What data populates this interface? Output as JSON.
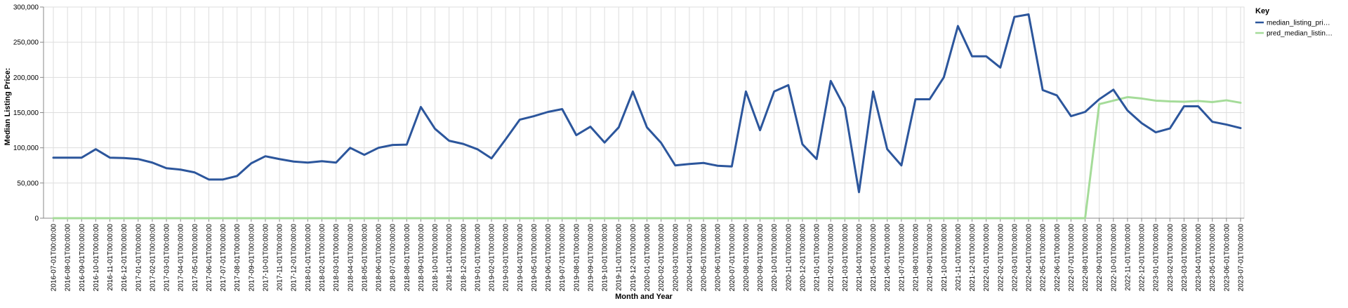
{
  "chart_data": {
    "type": "line",
    "xlabel": "Month and Year",
    "ylabel": "Median Listing Price:",
    "ylim": [
      0,
      300000
    ],
    "y_ticks": [
      0,
      50000,
      100000,
      150000,
      200000,
      250000,
      300000
    ],
    "y_tick_labels": [
      "0",
      "50,000",
      "100,000",
      "150,000",
      "200,000",
      "250,000",
      "300,000"
    ],
    "grid": true,
    "legend": {
      "title": "Key",
      "placement": "top-right",
      "entries": [
        {
          "label": "median_listing_pri…",
          "color": "#2c569c"
        },
        {
          "label": "pred_median_listin…",
          "color": "#a5dc99"
        }
      ]
    },
    "categories": [
      "2016-07-01T00:00:00",
      "2016-08-01T00:00:00",
      "2016-09-01T00:00:00",
      "2016-10-01T00:00:00",
      "2016-11-01T00:00:00",
      "2016-12-01T00:00:00",
      "2017-01-01T00:00:00",
      "2017-02-01T00:00:00",
      "2017-03-01T00:00:00",
      "2017-04-01T00:00:00",
      "2017-05-01T00:00:00",
      "2017-06-01T00:00:00",
      "2017-07-01T00:00:00",
      "2017-08-01T00:00:00",
      "2017-09-01T00:00:00",
      "2017-10-01T00:00:00",
      "2017-11-01T00:00:00",
      "2017-12-01T00:00:00",
      "2018-01-01T00:00:00",
      "2018-02-01T00:00:00",
      "2018-03-01T00:00:00",
      "2018-04-01T00:00:00",
      "2018-05-01T00:00:00",
      "2018-06-01T00:00:00",
      "2018-07-01T00:00:00",
      "2018-08-01T00:00:00",
      "2018-09-01T00:00:00",
      "2018-10-01T00:00:00",
      "2018-11-01T00:00:00",
      "2018-12-01T00:00:00",
      "2019-01-01T00:00:00",
      "2019-02-01T00:00:00",
      "2019-03-01T00:00:00",
      "2019-04-01T00:00:00",
      "2019-05-01T00:00:00",
      "2019-06-01T00:00:00",
      "2019-07-01T00:00:00",
      "2019-08-01T00:00:00",
      "2019-09-01T00:00:00",
      "2019-10-01T00:00:00",
      "2019-11-01T00:00:00",
      "2019-12-01T00:00:00",
      "2020-01-01T00:00:00",
      "2020-02-01T00:00:00",
      "2020-03-01T00:00:00",
      "2020-04-01T00:00:00",
      "2020-05-01T00:00:00",
      "2020-06-01T00:00:00",
      "2020-07-01T00:00:00",
      "2020-08-01T00:00:00",
      "2020-09-01T00:00:00",
      "2020-10-01T00:00:00",
      "2020-11-01T00:00:00",
      "2020-12-01T00:00:00",
      "2021-01-01T00:00:00",
      "2021-02-01T00:00:00",
      "2021-03-01T00:00:00",
      "2021-04-01T00:00:00",
      "2021-05-01T00:00:00",
      "2021-06-01T00:00:00",
      "2021-07-01T00:00:00",
      "2021-08-01T00:00:00",
      "2021-09-01T00:00:00",
      "2021-10-01T00:00:00",
      "2021-11-01T00:00:00",
      "2021-12-01T00:00:00",
      "2022-01-01T00:00:00",
      "2022-02-01T00:00:00",
      "2022-03-01T00:00:00",
      "2022-04-01T00:00:00",
      "2022-05-01T00:00:00",
      "2022-06-01T00:00:00",
      "2022-07-01T00:00:00",
      "2022-08-01T00:00:00",
      "2022-09-01T00:00:00",
      "2022-10-01T00:00:00",
      "2022-11-01T00:00:00",
      "2022-12-01T00:00:00",
      "2023-01-01T00:00:00",
      "2023-02-01T00:00:00",
      "2023-03-01T00:00:00",
      "2023-04-01T00:00:00",
      "2023-05-01T00:00:00",
      "2023-06-01T00:00:00",
      "2023-07-01T00:00:00"
    ],
    "series": [
      {
        "name": "median_listing_pri…",
        "color": "#2c569c",
        "values": [
          86000,
          86000,
          86000,
          98000,
          86000,
          85500,
          84000,
          79000,
          71000,
          69000,
          65000,
          55000,
          55000,
          60000,
          78000,
          88000,
          84000,
          80500,
          79000,
          81000,
          79000,
          100000,
          90000,
          100000,
          104000,
          104500,
          158000,
          127000,
          110000,
          105500,
          98000,
          85000,
          112000,
          140000,
          145000,
          151000,
          155000,
          118000,
          130000,
          107500,
          129000,
          180000,
          129000,
          107000,
          75000,
          77000,
          78500,
          74500,
          73500,
          180000,
          125000,
          180000,
          189000,
          105000,
          84000,
          195000,
          157000,
          37000,
          180000,
          98000,
          75000,
          169000,
          169000,
          200000,
          273000,
          230000,
          230000,
          214000,
          286000,
          289500,
          182000,
          174500,
          145000,
          151000,
          169000,
          182500,
          153000,
          135000,
          122000,
          127500,
          159000,
          159000,
          137000,
          133000,
          128000
        ]
      },
      {
        "name": "pred_median_listin…",
        "color": "#a5dc99",
        "values": [
          0,
          0,
          0,
          0,
          0,
          0,
          0,
          0,
          0,
          0,
          0,
          0,
          0,
          0,
          0,
          0,
          0,
          0,
          0,
          0,
          0,
          0,
          0,
          0,
          0,
          0,
          0,
          0,
          0,
          0,
          0,
          0,
          0,
          0,
          0,
          0,
          0,
          0,
          0,
          0,
          0,
          0,
          0,
          0,
          0,
          0,
          0,
          0,
          0,
          0,
          0,
          0,
          0,
          0,
          0,
          0,
          0,
          0,
          0,
          0,
          0,
          0,
          0,
          0,
          0,
          0,
          0,
          0,
          0,
          0,
          0,
          0,
          0,
          0,
          162000,
          167000,
          172000,
          170000,
          167000,
          166000,
          165500,
          166500,
          165000,
          167500,
          164000
        ]
      }
    ]
  }
}
